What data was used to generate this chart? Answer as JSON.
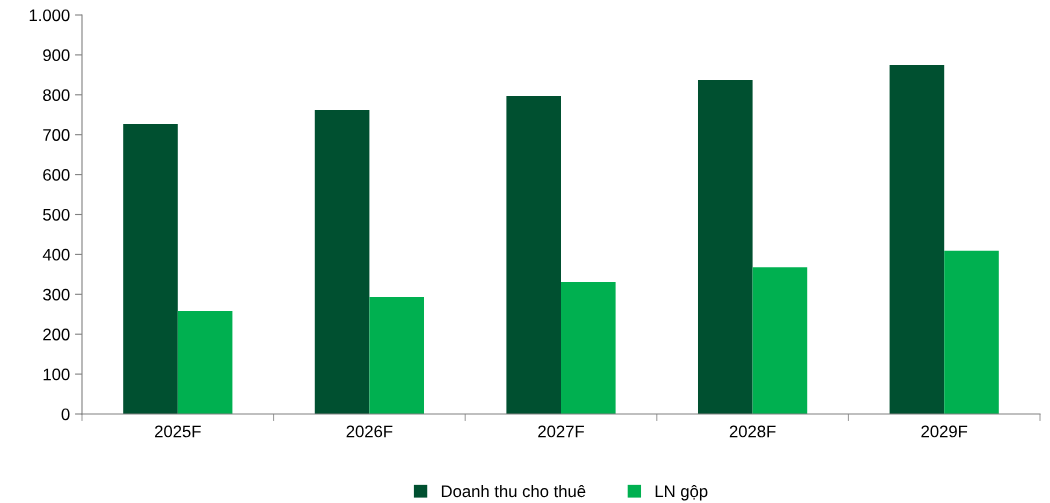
{
  "chart_data": {
    "type": "bar",
    "categories": [
      "2025F",
      "2026F",
      "2027F",
      "2028F",
      "2029F"
    ],
    "series": [
      {
        "name": "Doanh thu cho thuê",
        "color": "#005030",
        "values": [
          727,
          762,
          797,
          837,
          875
        ]
      },
      {
        "name": "LN gộp",
        "color": "#00b050",
        "values": [
          258,
          293,
          331,
          368,
          409
        ]
      }
    ],
    "ylim": [
      0,
      1000
    ],
    "yticks": [
      0,
      100,
      200,
      300,
      400,
      500,
      600,
      700,
      800,
      900,
      {
        "value": 1000,
        "label": "1.000"
      }
    ],
    "grid": false,
    "legend": "bottom"
  }
}
